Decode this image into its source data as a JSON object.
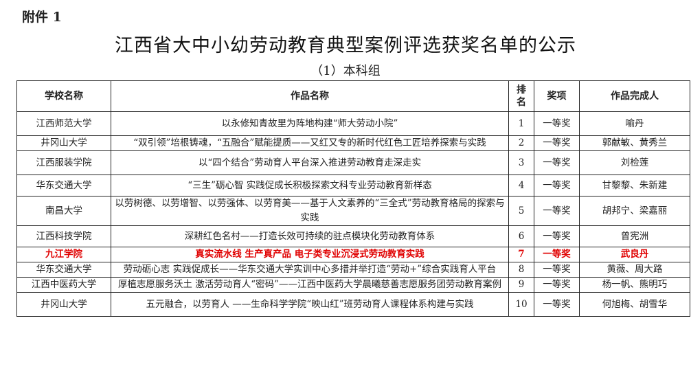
{
  "attachment_label": "附件 1",
  "title": "江西省大中小幼劳动教育典型案例评选获奖名单的公示",
  "subtitle": "（1）本科组",
  "highlight_color": "#e00000",
  "table": {
    "headers": {
      "school": "学校名称",
      "work": "作品名称",
      "rank_1": "排",
      "rank_2": "名",
      "award": "奖项",
      "authors": "作品完成人"
    },
    "rows": [
      {
        "school": "江西师范大学",
        "work": "以永修知青故里为阵地构建“师大劳动小院”",
        "rank": "1",
        "award": "一等奖",
        "authors": "喻丹"
      },
      {
        "school": "井冈山大学",
        "work": "“双引领”培根铸魂，“五融合”赋能提质——又红又专的新时代红色工匠培养探索与实践",
        "rank": "2",
        "award": "一等奖",
        "authors": "郭献敏、黄秀兰"
      },
      {
        "school": "江西服装学院",
        "work": "以“四个结合”劳动育人平台深入推进劳动教育走深走实",
        "rank": "3",
        "award": "一等奖",
        "authors": "刘检莲"
      },
      {
        "school": "华东交通大学",
        "work": "“三生”砺心智 实践促成长积极探索文科专业劳动教育新样态",
        "rank": "4",
        "award": "一等奖",
        "authors": "甘黎黎、朱新建"
      },
      {
        "school": "南昌大学",
        "work": "以劳树德、以劳增智、以劳强体、以劳育美——基于人文素养的“三全式”劳动教育格局的探索与实践",
        "rank": "5",
        "award": "一等奖",
        "authors": "胡邦宁、梁嘉丽"
      },
      {
        "school": "江西科技学院",
        "work": "深耕红色名村——打造长效可持续的驻点模块化劳动教育体系",
        "rank": "6",
        "award": "一等奖",
        "authors": "曾宪洲"
      },
      {
        "school": "九江学院",
        "work": "真实流水线 生产真产品 电子类专业沉浸式劳动教育实践",
        "rank": "7",
        "award": "一等奖",
        "authors": "武良丹"
      },
      {
        "school": "华东交通大学",
        "work": "劳动砺心志 实践促成长——华东交通大学实训中心多措并举打造“劳动+”综合实践育人平台",
        "rank": "8",
        "award": "一等奖",
        "authors": "黄薇、周大路"
      },
      {
        "school": "江西中医药大学",
        "work": "厚植志愿服务沃土 激活劳动育人“密码”——江西中医药大学晨曦慈善志愿服务团劳动教育案例",
        "rank": "9",
        "award": "一等奖",
        "authors": "杨一帆、熊明巧"
      },
      {
        "school": "井冈山大学",
        "work": "五元融合，以劳育人 ——生命科学学院“映山红”班劳动育人课程体系构建与实践",
        "rank": "10",
        "award": "一等奖",
        "authors": "何旭梅、胡雪华"
      }
    ]
  }
}
